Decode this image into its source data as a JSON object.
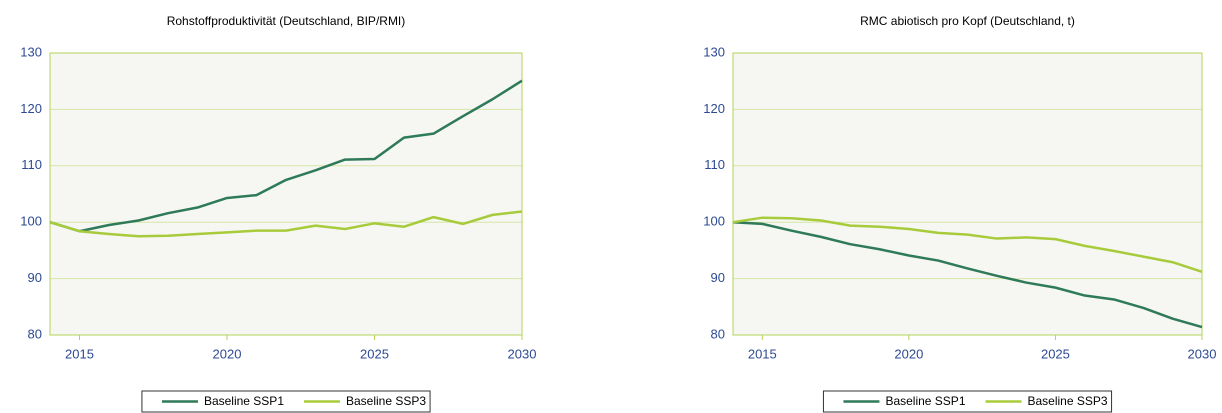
{
  "chart_data": [
    {
      "type": "line",
      "title": "Rohstoffproduktivität (Deutschland, BIP/RMI)",
      "x": [
        2014,
        2015,
        2016,
        2017,
        2018,
        2019,
        2020,
        2021,
        2022,
        2023,
        2024,
        2025,
        2026,
        2027,
        2028,
        2029,
        2030
      ],
      "series": [
        {
          "name": "Baseline SSP1",
          "color": "#2f7a58",
          "values": [
            100,
            98.4,
            99.5,
            100.3,
            101.6,
            102.6,
            104.3,
            104.8,
            107.5,
            109.2,
            111.1,
            111.2,
            115,
            115.7,
            118.8,
            121.8,
            125.1
          ]
        },
        {
          "name": "Baseline SSP3",
          "color": "#a8cb3c",
          "values": [
            100,
            98.4,
            97.9,
            97.5,
            97.6,
            97.9,
            98.2,
            98.5,
            98.5,
            99.4,
            98.8,
            99.8,
            99.2,
            100.9,
            99.7,
            101.3,
            101.9
          ]
        }
      ],
      "xlim": [
        2014,
        2030
      ],
      "xticks": [
        2015,
        2020,
        2025,
        2030
      ],
      "ylim": [
        80,
        130
      ],
      "yticks": [
        80,
        90,
        100,
        110,
        120,
        130
      ],
      "grid": true,
      "legend": "bottom"
    },
    {
      "type": "line",
      "title": "RMC abiotisch pro Kopf (Deutschland, t)",
      "x": [
        2014,
        2015,
        2016,
        2017,
        2018,
        2019,
        2020,
        2021,
        2022,
        2023,
        2024,
        2025,
        2026,
        2027,
        2028,
        2029,
        2030
      ],
      "series": [
        {
          "name": "Baseline SSP1",
          "color": "#2f7a58",
          "values": [
            100,
            99.7,
            98.5,
            97.4,
            96.1,
            95.2,
            94.1,
            93.2,
            91.8,
            90.5,
            89.3,
            88.4,
            87,
            86.3,
            84.8,
            82.9,
            81.4
          ]
        },
        {
          "name": "Baseline SSP3",
          "color": "#a8cb3c",
          "values": [
            100,
            100.8,
            100.7,
            100.3,
            99.4,
            99.2,
            98.8,
            98.1,
            97.8,
            97.1,
            97.3,
            97,
            95.8,
            94.9,
            93.9,
            92.9,
            91.2
          ]
        }
      ],
      "xlim": [
        2014,
        2030
      ],
      "xticks": [
        2015,
        2020,
        2025,
        2030
      ],
      "ylim": [
        80,
        130
      ],
      "yticks": [
        80,
        90,
        100,
        110,
        120,
        130
      ],
      "grid": true,
      "legend": "bottom"
    }
  ]
}
